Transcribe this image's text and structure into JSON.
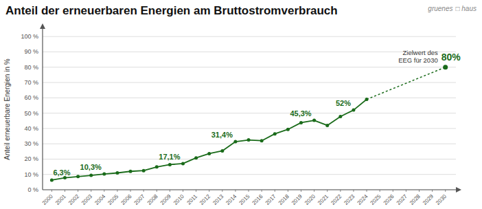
{
  "chart_data": {
    "type": "line",
    "title": "Anteil der erneuerbaren Energien am Bruttostromverbrauch",
    "y_label": "Anteil erneuerbare Energien in %",
    "series": [
      {
        "x": [
          2000,
          2001,
          2002,
          2003,
          2004,
          2005,
          2006,
          2007,
          2008,
          2009,
          2010,
          2011,
          2012,
          2013,
          2014,
          2015,
          2016,
          2017,
          2018,
          2019,
          2020,
          2021,
          2022,
          2023,
          2024
        ],
        "values": [
          6.3,
          7.8,
          8.6,
          9.4,
          10.3,
          11.0,
          12.0,
          12.5,
          14.9,
          16.4,
          17.1,
          20.8,
          23.6,
          25.4,
          31.4,
          32.5,
          32.0,
          36.5,
          39.4,
          43.8,
          45.3,
          42.0,
          47.8,
          52.0,
          59.0
        ],
        "value_labels": [
          "6,3%",
          null,
          null,
          null,
          "10,3%",
          null,
          null,
          null,
          null,
          null,
          "17,1%",
          null,
          null,
          null,
          "31,4%",
          null,
          null,
          null,
          null,
          null,
          "45,3%",
          null,
          null,
          "52%",
          null
        ],
        "color": "#1a6b1a",
        "marker": "circle",
        "line_style": "solid"
      },
      {
        "x": [
          2024,
          2030
        ],
        "values": [
          59.0,
          80.0
        ],
        "color": "#1a6b1a",
        "line_style": "dotted"
      },
      {
        "x": [
          2030
        ],
        "values": [
          80
        ],
        "value_labels": [
          "80%"
        ],
        "color": "#1a6b1a",
        "marker": "circle"
      }
    ],
    "annotations": [
      {
        "text": "Zielwert des"
      },
      {
        "text": "EEG für 2030"
      }
    ],
    "logo": [
      "gruenes",
      "□ haus"
    ],
    "xlim": [
      1999.3,
      2030.8
    ],
    "xticks": [
      2000,
      2001,
      2002,
      2003,
      2004,
      2005,
      2006,
      2007,
      2008,
      2009,
      2010,
      2011,
      2012,
      2013,
      2014,
      2015,
      2016,
      2017,
      2018,
      2019,
      2020,
      2021,
      2022,
      2023,
      2024,
      2025,
      2026,
      2027,
      2028,
      2029,
      2030
    ],
    "ylim": [
      0,
      105
    ],
    "yticks": [
      {
        "value": 0,
        "label": "0 %"
      },
      {
        "value": 10,
        "label": "10 %"
      },
      {
        "value": 20,
        "label": "20 %"
      },
      {
        "value": 30,
        "label": "30 %"
      },
      {
        "value": 40,
        "label": "40 %"
      },
      {
        "value": 50,
        "label": "50 %"
      },
      {
        "value": 60,
        "label": "60 %"
      },
      {
        "value": 70,
        "label": "70 %"
      },
      {
        "value": 80,
        "label": "80 %"
      },
      {
        "value": 90,
        "label": "90 %"
      },
      {
        "value": 100,
        "label": "100 %"
      }
    ],
    "grid": true
  }
}
